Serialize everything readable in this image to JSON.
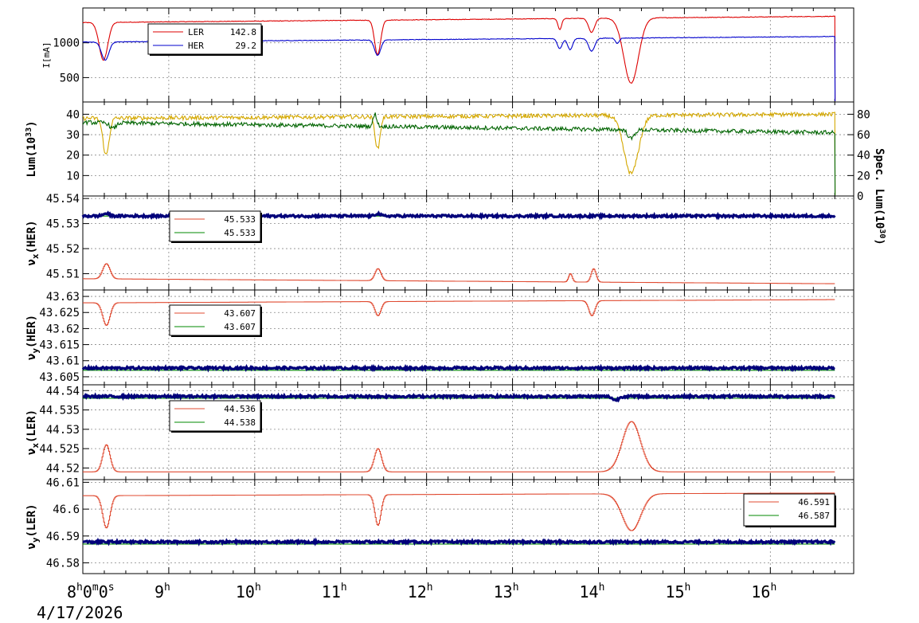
{
  "x_axis": {
    "start_label": "8",
    "start_rest": "0",
    "start_rest2": "0",
    "date": "4/17/2026",
    "ticks": [
      {
        "t": 9,
        "label": "9"
      },
      {
        "t": 10,
        "label": "10"
      },
      {
        "t": 11,
        "label": "11"
      },
      {
        "t": 12,
        "label": "12"
      },
      {
        "t": 13,
        "label": "13"
      },
      {
        "t": 14,
        "label": "14"
      },
      {
        "t": 15,
        "label": "15"
      },
      {
        "t": 16,
        "label": "16"
      }
    ],
    "sup_h": "h",
    "sup_m": "m",
    "sup_s": "s",
    "range": [
      8.0,
      16.97
    ]
  },
  "panels": [
    {
      "key": "current",
      "ylabel": "I[mA]",
      "ylim": [
        150,
        1500
      ],
      "yticks": [
        500,
        1000
      ],
      "legend": {
        "entries": [
          {
            "label": "LER",
            "value": "142.8",
            "color": "#dd0000"
          },
          {
            "label": "HER",
            "value": "29.2",
            "color": "#0000cc"
          }
        ]
      }
    },
    {
      "key": "lum",
      "ylabel": "Lum(10",
      "ylabel_sup": "33",
      "ylabel_tail": ")",
      "ylim": [
        0,
        46
      ],
      "yticks": [
        10,
        20,
        30,
        40
      ],
      "right_label": "Spec. Lum(10",
      "right_sup": "30",
      "right_tail": ")",
      "right_ylim": [
        0,
        92
      ],
      "right_ticks": [
        0,
        20,
        40,
        60,
        80
      ]
    },
    {
      "key": "nux_her",
      "ylabel": "ν",
      "ylabel_sub": "x",
      "ylabel_tail": "(HER)",
      "ylim": [
        45.5035,
        45.541
      ],
      "yticks": [
        45.51,
        45.52,
        45.53,
        45.54
      ],
      "legend": {
        "entries": [
          {
            "label": "",
            "value": "45.533",
            "color": "#e04b32"
          },
          {
            "label": "",
            "value": "45.533",
            "color": "#008800"
          }
        ]
      }
    },
    {
      "key": "nuy_her",
      "ylabel": "ν",
      "ylabel_sub": "y",
      "ylabel_tail": "(HER)",
      "ylim": [
        43.6025,
        43.632
      ],
      "yticks": [
        43.605,
        43.61,
        43.615,
        43.62,
        43.625,
        43.63
      ],
      "legend": {
        "entries": [
          {
            "label": "",
            "value": "43.607",
            "color": "#e04b32"
          },
          {
            "label": "",
            "value": "43.607",
            "color": "#008800"
          }
        ]
      }
    },
    {
      "key": "nux_ler",
      "ylabel": "ν",
      "ylabel_sub": "x",
      "ylabel_tail": "(LER)",
      "ylim": [
        44.517,
        44.5415
      ],
      "yticks": [
        44.52,
        44.525,
        44.53,
        44.535,
        44.54
      ],
      "legend": {
        "entries": [
          {
            "label": "",
            "value": "44.536",
            "color": "#e04b32"
          },
          {
            "label": "",
            "value": "44.538",
            "color": "#008800"
          }
        ]
      }
    },
    {
      "key": "nuy_ler",
      "ylabel": "ν",
      "ylabel_sub": "y",
      "ylabel_tail": "(LER)",
      "ylim": [
        46.576,
        46.611
      ],
      "yticks": [
        46.58,
        46.59,
        46.6,
        46.61
      ],
      "legend": {
        "entries": [
          {
            "label": "",
            "value": "46.591",
            "color": "#e04b32"
          },
          {
            "label": "",
            "value": "46.587",
            "color": "#008800"
          }
        ]
      }
    }
  ],
  "chart_data": {
    "type": "line",
    "x_unit": "hour of day",
    "end_time": 16.75,
    "panels": [
      {
        "key": "current",
        "series": [
          {
            "name": "LER",
            "color": "#dd0000",
            "base": 1290,
            "end": 1380,
            "dips": [
              [
                8.24,
                750,
                0.07
              ],
              [
                11.43,
                830,
                0.05
              ],
              [
                13.55,
                1190,
                0.03
              ],
              [
                13.92,
                1150,
                0.05
              ],
              [
                14.38,
                420,
                0.12
              ]
            ]
          },
          {
            "name": "HER",
            "color": "#0000cc",
            "base": 1010,
            "end": 1090,
            "dips": [
              [
                8.26,
                750,
                0.06
              ],
              [
                11.43,
                820,
                0.05
              ],
              [
                13.55,
                920,
                0.04
              ],
              [
                13.67,
                900,
                0.04
              ],
              [
                13.92,
                880,
                0.05
              ],
              [
                14.22,
                990,
                0.03
              ]
            ]
          }
        ]
      },
      {
        "key": "lum",
        "series": [
          {
            "name": "",
            "color": "#d4a800",
            "base": 38,
            "end": 40,
            "dips": [
              [
                8.27,
                20,
                0.05
              ],
              [
                11.43,
                23,
                0.04
              ],
              [
                14.38,
                11,
                0.12
              ]
            ]
          },
          {
            "name": "",
            "color": "#006400",
            "base": 36,
            "end": 31,
            "dips": [
              [
                8.35,
                33,
                0.05
              ],
              [
                11.4,
                40,
                0.03
              ],
              [
                14.38,
                28,
                0.05
              ]
            ]
          }
        ]
      },
      {
        "key": "nux_her",
        "series": [
          {
            "name": "",
            "color": "#e04b32",
            "base": 45.508,
            "end": 45.506,
            "dips": [
              [
                8.27,
                45.514,
                0.06
              ],
              [
                11.43,
                45.512,
                0.05
              ],
              [
                13.67,
                45.51,
                0.03
              ],
              [
                13.94,
                45.512,
                0.04
              ]
            ]
          },
          {
            "name": "",
            "color": "#008800",
            "base": 45.533,
            "end": 45.533,
            "dips": []
          },
          {
            "name": "",
            "color": "#00007a",
            "base": 45.533,
            "end": 45.533,
            "dips": [
              [
                8.27,
                45.534,
                0.05
              ],
              [
                11.43,
                45.534,
                0.04
              ]
            ]
          }
        ]
      },
      {
        "key": "nuy_her",
        "series": [
          {
            "name": "",
            "color": "#e04b32",
            "base": 43.628,
            "end": 43.629,
            "dips": [
              [
                8.27,
                43.621,
                0.06
              ],
              [
                11.43,
                43.624,
                0.05
              ],
              [
                13.92,
                43.624,
                0.05
              ]
            ]
          },
          {
            "name": "",
            "color": "#008800",
            "base": 43.607,
            "end": 43.607,
            "dips": []
          },
          {
            "name": "",
            "color": "#00007a",
            "base": 43.6077,
            "end": 43.6077,
            "dips": []
          }
        ]
      },
      {
        "key": "nux_ler",
        "series": [
          {
            "name": "",
            "color": "#e04b32",
            "base": 44.519,
            "end": 44.519,
            "dips": [
              [
                8.27,
                44.526,
                0.06
              ],
              [
                11.43,
                44.525,
                0.06
              ],
              [
                14.38,
                44.532,
                0.15
              ]
            ]
          },
          {
            "name": "",
            "color": "#008800",
            "base": 44.538,
            "end": 44.538,
            "dips": []
          },
          {
            "name": "",
            "color": "#00007a",
            "base": 44.5385,
            "end": 44.5385,
            "dips": [
              [
                14.2,
                44.5375,
                0.05
              ]
            ]
          }
        ]
      },
      {
        "key": "nuy_ler",
        "series": [
          {
            "name": "",
            "color": "#e04b32",
            "base": 46.605,
            "end": 46.606,
            "dips": [
              [
                8.27,
                46.593,
                0.06
              ],
              [
                11.43,
                46.594,
                0.05
              ],
              [
                14.38,
                46.592,
                0.15
              ]
            ]
          },
          {
            "name": "",
            "color": "#008800",
            "base": 46.587,
            "end": 46.587,
            "dips": []
          },
          {
            "name": "",
            "color": "#00007a",
            "base": 46.5878,
            "end": 46.5878,
            "dips": []
          }
        ]
      }
    ]
  }
}
